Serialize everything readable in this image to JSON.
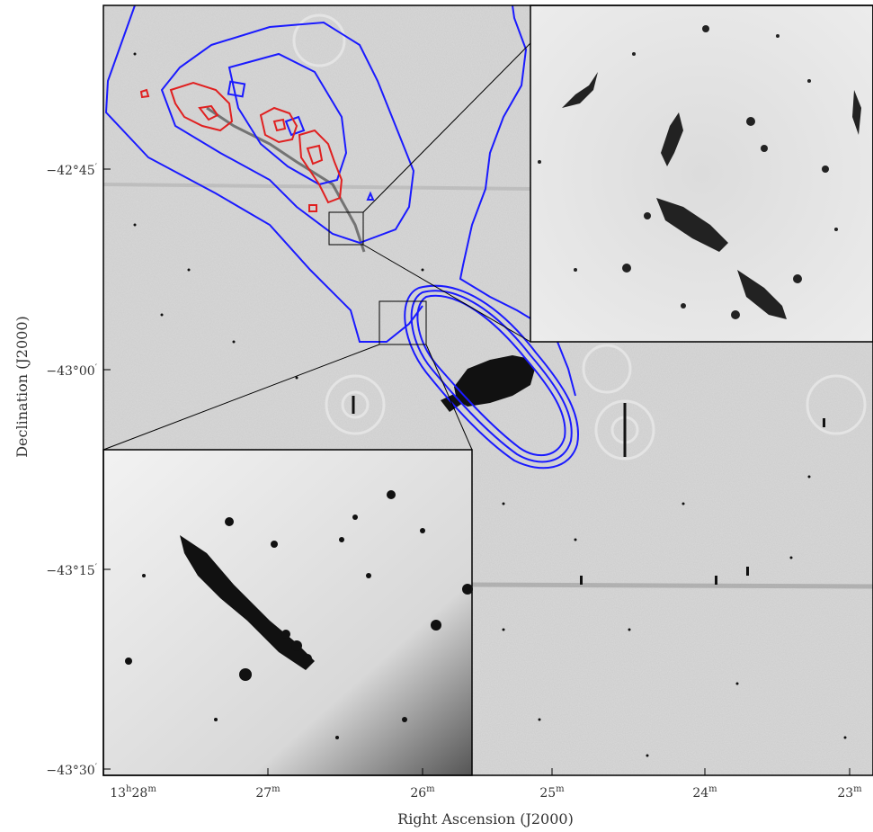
{
  "figure": {
    "y_axis_label": "Declination (J2000)",
    "x_axis_label": "Right Ascension (J2000)",
    "y_ticks": [
      {
        "deg": "−42°45",
        "min": "′"
      },
      {
        "deg": "−43°00",
        "min": "′"
      },
      {
        "deg": "−43°15",
        "min": "′"
      },
      {
        "deg": "−43°30",
        "min": "′"
      }
    ],
    "x_ticks": [
      {
        "prefix": "13",
        "h": "h",
        "value": "28",
        "unit": "m"
      },
      {
        "prefix": "",
        "h": "",
        "value": "27",
        "unit": "m"
      },
      {
        "prefix": "",
        "h": "",
        "value": "26",
        "unit": "m"
      },
      {
        "prefix": "",
        "h": "",
        "value": "25",
        "unit": "m"
      },
      {
        "prefix": "",
        "h": "",
        "value": "24",
        "unit": "m"
      },
      {
        "prefix": "",
        "h": "",
        "value": "23",
        "unit": "m"
      }
    ],
    "colors": {
      "contour_outer": "#1a1aff",
      "contour_inner": "#e02020",
      "frame": "#000000",
      "image_gray": "#c8c8c8"
    },
    "insets": [
      "top-right zoom",
      "bottom-left zoom"
    ]
  }
}
